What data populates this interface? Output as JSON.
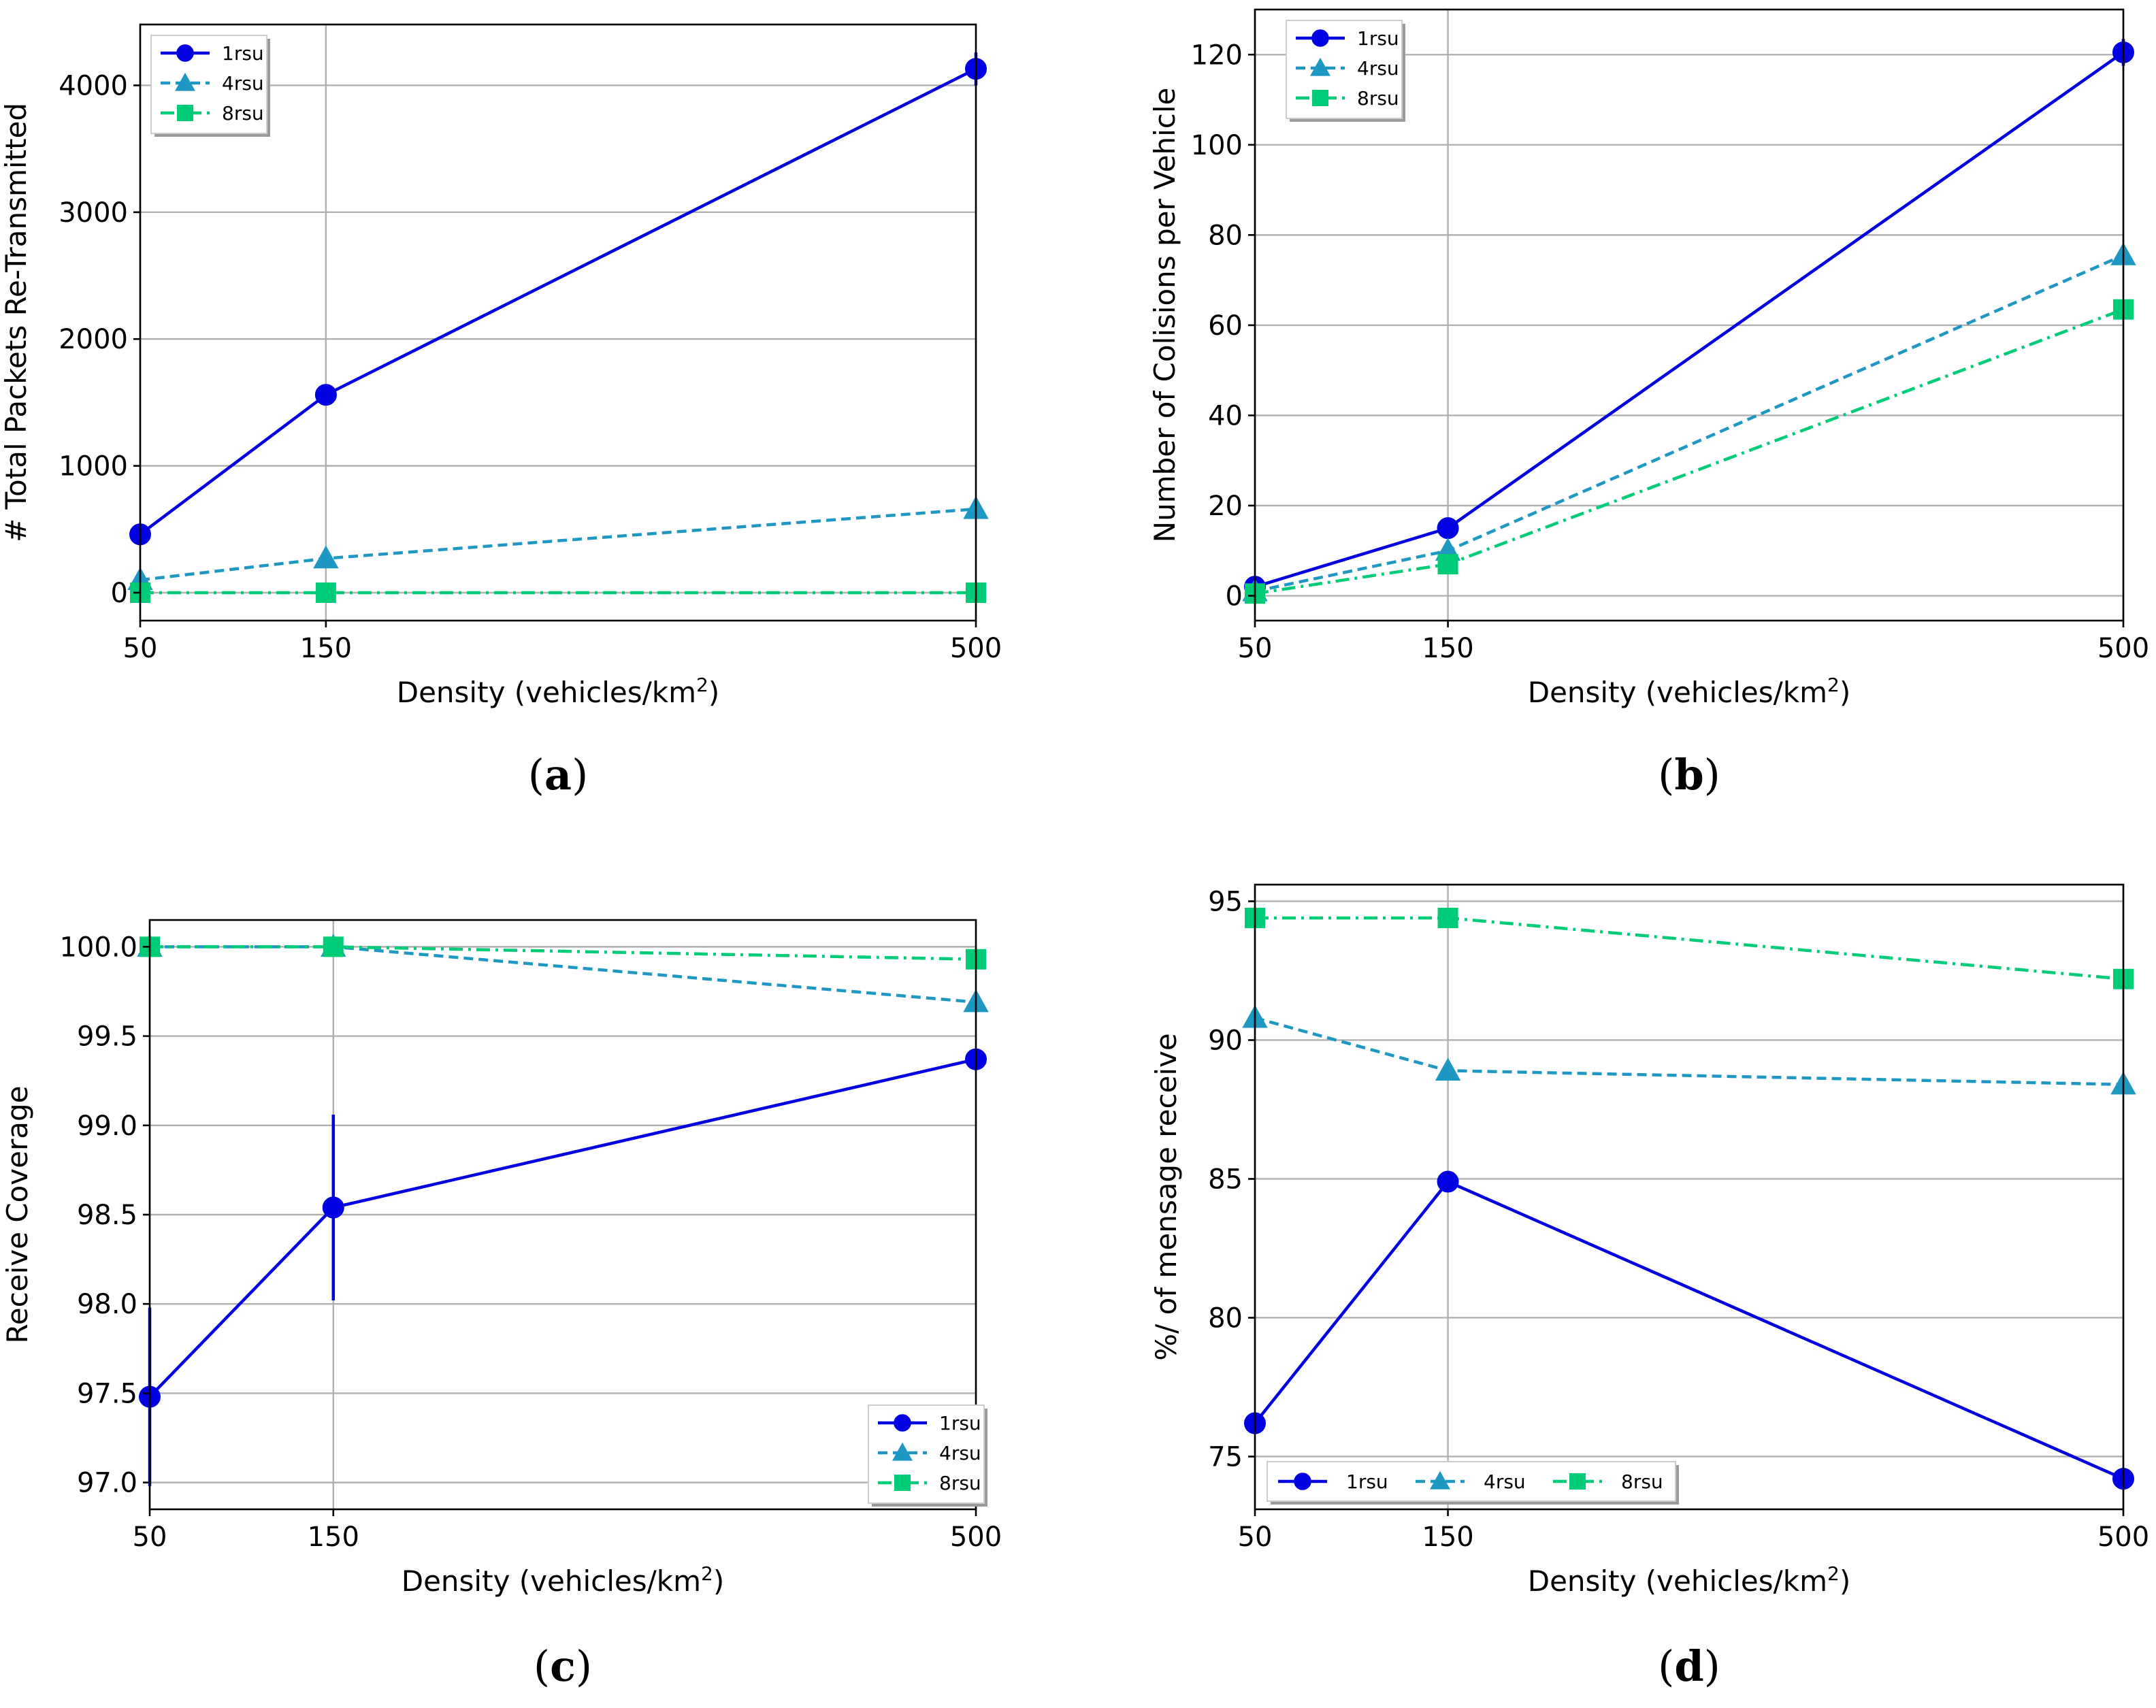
{
  "figure": {
    "panel_label_template": "(%)"
  },
  "chart_data": [
    {
      "panel": "a",
      "type": "line",
      "title": "",
      "xlabel": "Density (vehicles/km",
      "xlabel_sup": "2",
      "xlabel_end": ")",
      "ylabel": "# Total Packets Re-Transmitted",
      "x": [
        50,
        150,
        500
      ],
      "xticks": [
        "50",
        "150",
        "500"
      ],
      "xlim": [
        50,
        500
      ],
      "ylim": [
        -220,
        4480
      ],
      "yticks": [
        0,
        1000,
        2000,
        3000,
        4000
      ],
      "grid": true,
      "legend_position": "upper-left",
      "series": [
        {
          "name": "1rsu",
          "values": [
            460,
            1560,
            4130
          ],
          "errors": [
            null,
            null,
            130
          ],
          "color": "#0000e0",
          "marker": "circle",
          "dash": "solid"
        },
        {
          "name": "4rsu",
          "values": [
            100,
            270,
            660
          ],
          "errors": [
            null,
            null,
            null
          ],
          "color": "#1f97c3",
          "marker": "triangle",
          "dash": "dashed"
        },
        {
          "name": "8rsu",
          "values": [
            0,
            0,
            0
          ],
          "errors": [
            null,
            null,
            null
          ],
          "color": "#00cc77",
          "marker": "square",
          "dash": "dashdot"
        }
      ]
    },
    {
      "panel": "b",
      "type": "line",
      "title": "",
      "xlabel": "Density (vehicles/km",
      "xlabel_sup": "2",
      "xlabel_end": ")",
      "ylabel": "Number of Colisions per Vehicle",
      "x": [
        50,
        150,
        500
      ],
      "xticks": [
        "50",
        "150",
        "500"
      ],
      "xlim": [
        50,
        500
      ],
      "ylim": [
        -5.5,
        130
      ],
      "yticks": [
        0,
        20,
        40,
        60,
        80,
        100,
        120
      ],
      "grid": true,
      "legend_position": "upper-left",
      "series": [
        {
          "name": "1rsu",
          "values": [
            2,
            15,
            120.5
          ],
          "errors": [
            null,
            null,
            3
          ],
          "color": "#0000e0",
          "marker": "circle",
          "dash": "solid"
        },
        {
          "name": "4rsu",
          "values": [
            1,
            10,
            75.5
          ],
          "errors": [
            null,
            null,
            null
          ],
          "color": "#1f97c3",
          "marker": "triangle",
          "dash": "dashed"
        },
        {
          "name": "8rsu",
          "values": [
            0.5,
            7,
            63.5
          ],
          "errors": [
            null,
            null,
            null
          ],
          "color": "#00cc77",
          "marker": "square",
          "dash": "dashdot"
        }
      ]
    },
    {
      "panel": "c",
      "type": "line",
      "title": "",
      "xlabel": "Density (vehicles/km",
      "xlabel_sup": "2",
      "xlabel_end": ")",
      "ylabel": "Receive Coverage",
      "x": [
        50,
        150,
        500
      ],
      "xticks": [
        "50",
        "150",
        "500"
      ],
      "xlim": [
        50,
        500
      ],
      "ylim": [
        96.85,
        100.15
      ],
      "yticks": [
        97.0,
        97.5,
        98.0,
        98.5,
        99.0,
        99.5,
        100.0
      ],
      "ytick_labels": [
        "97.0",
        "97.5",
        "98.0",
        "98.5",
        "99.0",
        "99.5",
        "100.0"
      ],
      "grid": true,
      "legend_position": "lower-right",
      "series": [
        {
          "name": "1rsu",
          "values": [
            97.48,
            98.54,
            99.37
          ],
          "errors": [
            0.5,
            0.52,
            null
          ],
          "color": "#0000e0",
          "marker": "circle",
          "dash": "solid"
        },
        {
          "name": "4rsu",
          "values": [
            100.0,
            100.0,
            99.69
          ],
          "errors": [
            null,
            null,
            null
          ],
          "color": "#1f97c3",
          "marker": "triangle",
          "dash": "dashed"
        },
        {
          "name": "8rsu",
          "values": [
            100.0,
            100.0,
            99.93
          ],
          "errors": [
            null,
            null,
            null
          ],
          "color": "#00cc77",
          "marker": "square",
          "dash": "dashdot"
        }
      ]
    },
    {
      "panel": "d",
      "type": "line",
      "title": "",
      "xlabel": "Density (vehicles/km",
      "xlabel_sup": "2",
      "xlabel_end": ")",
      "ylabel": "%/ of mensage receive",
      "x": [
        50,
        150,
        500
      ],
      "xticks": [
        "50",
        "150",
        "500"
      ],
      "xlim": [
        50,
        500
      ],
      "ylim": [
        73.1,
        95.6
      ],
      "yticks": [
        75,
        80,
        85,
        90,
        95
      ],
      "grid": true,
      "legend_position": "lower-center",
      "series": [
        {
          "name": "1rsu",
          "values": [
            76.2,
            84.9,
            74.2
          ],
          "errors": [
            null,
            null,
            null
          ],
          "color": "#0000e0",
          "marker": "circle",
          "dash": "solid"
        },
        {
          "name": "4rsu",
          "values": [
            90.8,
            88.9,
            88.4
          ],
          "errors": [
            null,
            null,
            null
          ],
          "color": "#1f97c3",
          "marker": "triangle",
          "dash": "dashed"
        },
        {
          "name": "8rsu",
          "values": [
            94.4,
            94.4,
            92.2
          ],
          "errors": [
            null,
            null,
            null
          ],
          "color": "#00cc77",
          "marker": "square",
          "dash": "dashdot"
        }
      ]
    }
  ]
}
